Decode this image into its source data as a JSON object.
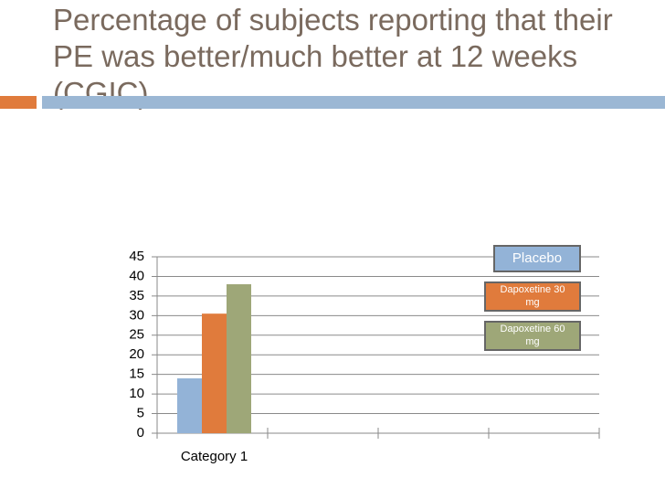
{
  "chart_data": {
    "type": "bar",
    "title": "Percentage of subjects reporting that their PE was better/much better at 12 weeks (CGIC)",
    "categories": [
      "Category 1",
      null,
      null,
      null
    ],
    "series": [
      {
        "name": "Placebo",
        "color": "#93b3d7",
        "values": [
          14,
          null,
          null,
          null
        ]
      },
      {
        "name": "Dapoxetine 30 mg",
        "color": "#e07b3c",
        "values": [
          30.5,
          null,
          null,
          null
        ]
      },
      {
        "name": "Dapoxetine 60 mg",
        "color": "#9ea778",
        "values": [
          38,
          null,
          null,
          null
        ]
      }
    ],
    "ylim": [
      0,
      45
    ],
    "yticks": [
      0,
      5,
      10,
      15,
      20,
      25,
      30,
      35,
      40,
      45
    ],
    "grid": true,
    "legend": "top-right"
  }
}
